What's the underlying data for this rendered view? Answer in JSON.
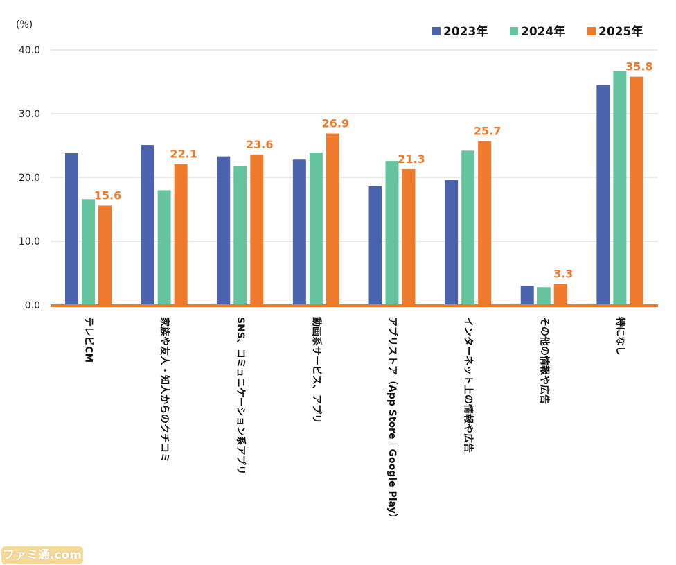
{
  "watermark": "ファミ通.com",
  "chart_data": {
    "type": "bar",
    "unit_label": "(%)",
    "ylim": [
      0,
      40
    ],
    "yticks": [
      "0.0",
      "10.0",
      "20.0",
      "30.0",
      "40.0"
    ],
    "grid": true,
    "legend_position": "top-right",
    "categories": [
      "テレビCM",
      "家族や友人・知人からのクチコミ",
      "SNS、コミュニケーション系アプリ",
      "動画系サービス、アプリ",
      "アプリストア（App Store｜Google Play）",
      "インターネット上の情報や広告",
      "その他の情報や広告",
      "特になし"
    ],
    "series": [
      {
        "name": "2023年",
        "color": "#4b62ad",
        "values": [
          23.8,
          25.1,
          23.3,
          22.8,
          18.6,
          19.6,
          3.0,
          34.5
        ]
      },
      {
        "name": "2024年",
        "color": "#66c39f",
        "values": [
          16.6,
          18.0,
          21.8,
          23.9,
          22.6,
          24.2,
          2.8,
          36.7
        ]
      },
      {
        "name": "2025年",
        "color": "#f07a2b",
        "values": [
          15.6,
          22.1,
          23.6,
          26.9,
          21.3,
          25.7,
          3.3,
          35.8
        ]
      }
    ],
    "data_labels": [
      "15.6",
      "22.1",
      "23.6",
      "26.9",
      "21.3",
      "25.7",
      "3.3",
      "35.8"
    ],
    "data_label_color": "#f07a2b"
  }
}
